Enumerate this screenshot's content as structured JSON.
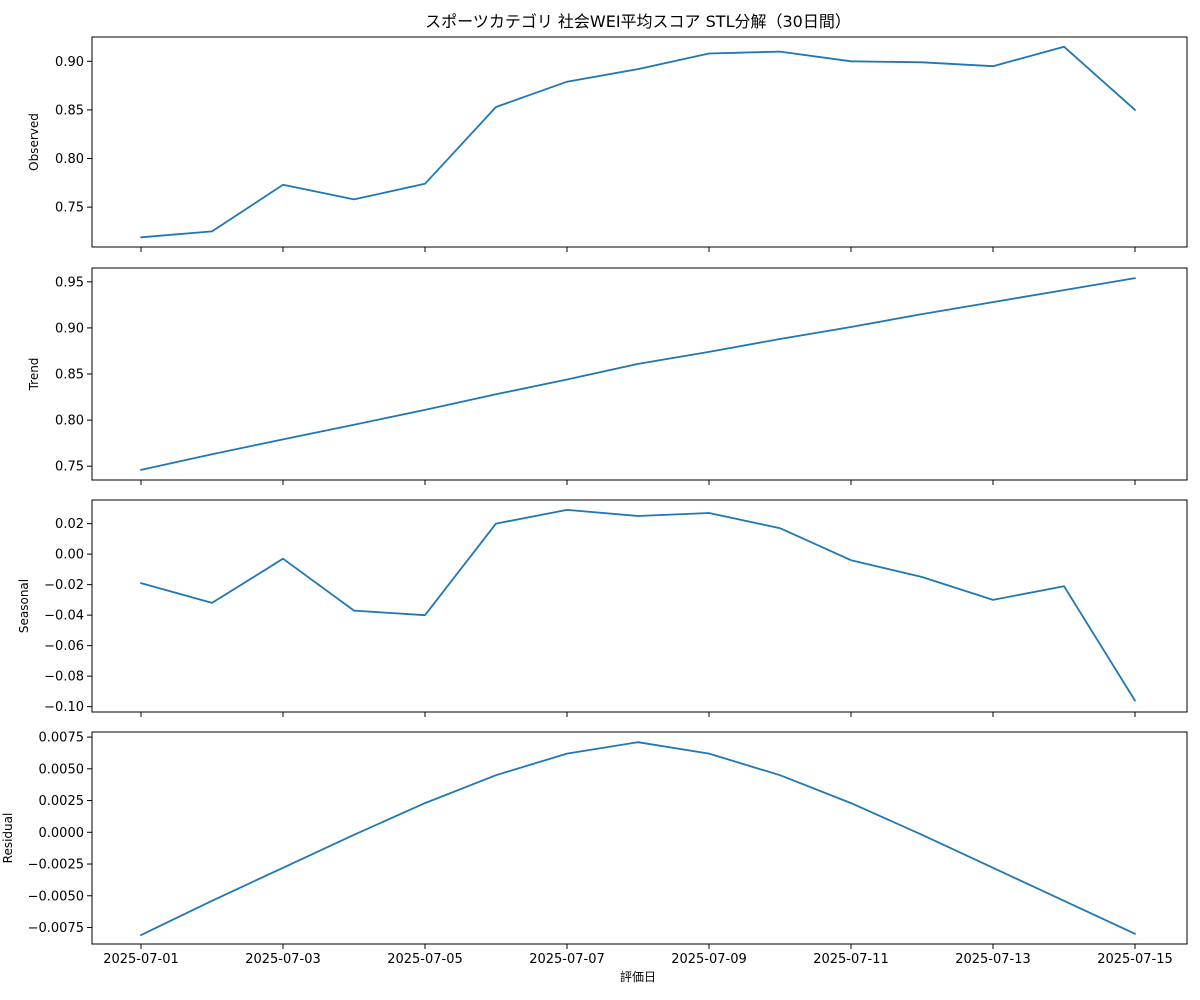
{
  "chart_data": {
    "type": "line",
    "title": "スポーツカテゴリ 社会WEI平均スコア STL分解（30日間）",
    "xlabel": "評価日",
    "x": [
      "2025-07-01",
      "2025-07-02",
      "2025-07-03",
      "2025-07-04",
      "2025-07-05",
      "2025-07-06",
      "2025-07-07",
      "2025-07-08",
      "2025-07-09",
      "2025-07-10",
      "2025-07-11",
      "2025-07-12",
      "2025-07-13",
      "2025-07-14",
      "2025-07-15"
    ],
    "xtick_labels": [
      "2025-07-01",
      "2025-07-03",
      "2025-07-05",
      "2025-07-07",
      "2025-07-09",
      "2025-07-11",
      "2025-07-13",
      "2025-07-15"
    ],
    "line_color": "#1f77b4",
    "grid": false,
    "panels": [
      {
        "ylabel": "Observed",
        "ylim": [
          0.709,
          0.925
        ],
        "yticks": [
          "0.75",
          "0.80",
          "0.85",
          "0.90"
        ],
        "values": [
          0.719,
          0.725,
          0.773,
          0.758,
          0.774,
          0.853,
          0.879,
          0.892,
          0.908,
          0.91,
          0.9,
          0.899,
          0.895,
          0.915,
          0.85
        ]
      },
      {
        "ylabel": "Trend",
        "ylim": [
          0.735,
          0.965
        ],
        "yticks": [
          "0.75",
          "0.80",
          "0.85",
          "0.90",
          "0.95"
        ],
        "values": [
          0.746,
          0.763,
          0.779,
          0.795,
          0.811,
          0.828,
          0.844,
          0.861,
          0.874,
          0.888,
          0.901,
          0.915,
          0.928,
          0.941,
          0.954
        ]
      },
      {
        "ylabel": "Seasonal",
        "ylim": [
          -0.1035,
          0.0355
        ],
        "yticks": [
          "0.02",
          "0.00",
          "−0.02",
          "−0.04",
          "−0.06",
          "−0.08",
          "−0.10"
        ],
        "values": [
          -0.019,
          -0.032,
          -0.003,
          -0.037,
          -0.04,
          0.02,
          0.029,
          0.025,
          0.027,
          0.017,
          -0.004,
          -0.015,
          -0.03,
          -0.021,
          -0.096
        ]
      },
      {
        "ylabel": "Residual",
        "ylim": [
          -0.0088,
          0.0079
        ],
        "yticks": [
          "0.0075",
          "0.0050",
          "0.0025",
          "0.0000",
          "−0.0025",
          "−0.0050",
          "−0.0075"
        ],
        "values": [
          -0.0081,
          -0.0054,
          -0.0028,
          -0.0002,
          0.0023,
          0.0045,
          0.0062,
          0.0071,
          0.0062,
          0.0045,
          0.0023,
          -0.0002,
          -0.0028,
          -0.0054,
          -0.008
        ]
      }
    ]
  }
}
